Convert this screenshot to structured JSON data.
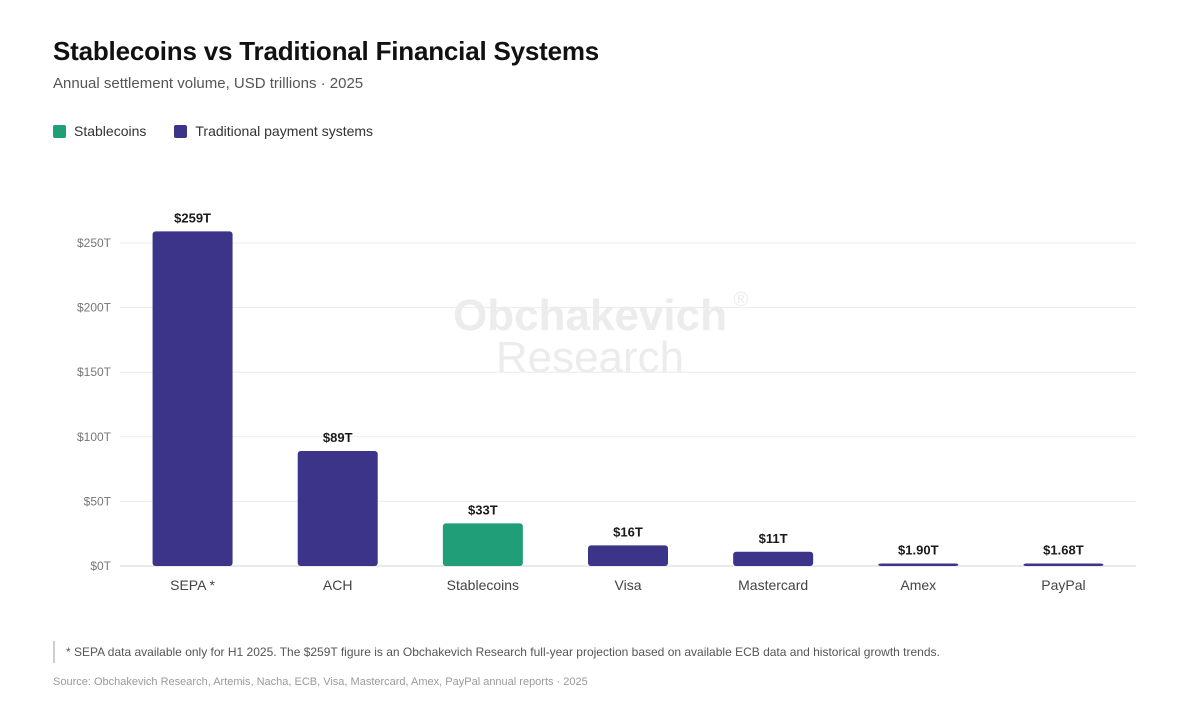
{
  "header": {
    "title": "Stablecoins vs Traditional Financial Systems",
    "subtitle": "Annual settlement volume, USD trillions · 2025"
  },
  "legend": [
    {
      "label": "Stablecoins",
      "color": "#1f9e78"
    },
    {
      "label": "Traditional payment systems",
      "color": "#3b3488"
    }
  ],
  "watermark": {
    "line1": "Obchakevich",
    "line2": "Research",
    "mark": "®"
  },
  "chart_data": {
    "type": "bar",
    "categories": [
      "SEPA *",
      "ACH",
      "Stablecoins",
      "Visa",
      "Mastercard",
      "Amex",
      "PayPal"
    ],
    "values": [
      259,
      89,
      33,
      16,
      11,
      1.9,
      1.68
    ],
    "data_labels": [
      "$259T",
      "$89T",
      "$33T",
      "$16T",
      "$11T",
      "$1.90T",
      "$1.68T"
    ],
    "bar_colors": [
      "#3b3488",
      "#3b3488",
      "#1f9e78",
      "#3b3488",
      "#3b3488",
      "#3b3488",
      "#3b3488"
    ],
    "yticks": [
      0,
      50,
      100,
      150,
      200,
      250
    ],
    "ytick_labels": [
      "$0T",
      "$50T",
      "$100T",
      "$150T",
      "$200T",
      "$250T"
    ],
    "ylim": [
      0,
      260
    ],
    "grid": true,
    "legend_position": "top-left"
  },
  "footnote": "* SEPA data available only for H1 2025. The $259T figure is an Obchakevich Research full-year projection based on available ECB data and historical growth trends.",
  "source": "Source: Obchakevich Research, Artemis, Nacha, ECB, Visa, Mastercard, Amex, PayPal annual reports · 2025"
}
